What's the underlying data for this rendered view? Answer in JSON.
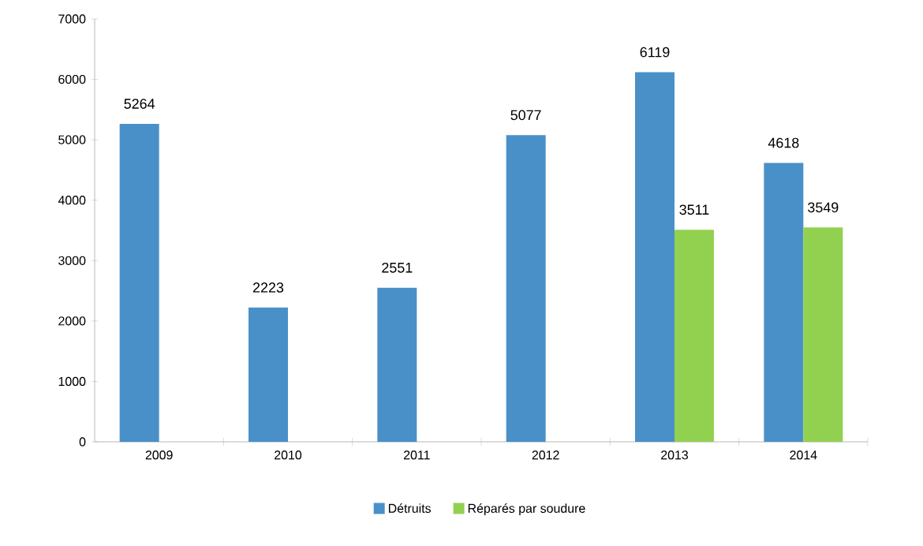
{
  "chart_data": {
    "type": "bar",
    "categories": [
      "2009",
      "2010",
      "2011",
      "2012",
      "2013",
      "2014"
    ],
    "series": [
      {
        "name": "Détruits",
        "color": "#4a90c8",
        "values": [
          5264,
          2223,
          2551,
          5077,
          6119,
          4618
        ]
      },
      {
        "name": "Réparés par soudure",
        "color": "#92d050",
        "values": [
          null,
          null,
          null,
          null,
          3511,
          3549
        ]
      }
    ],
    "ylim": [
      0,
      7000
    ],
    "yticks": [
      0,
      1000,
      2000,
      3000,
      4000,
      5000,
      6000,
      7000
    ],
    "data_labels": true,
    "legend": "bottom",
    "grid": false
  }
}
